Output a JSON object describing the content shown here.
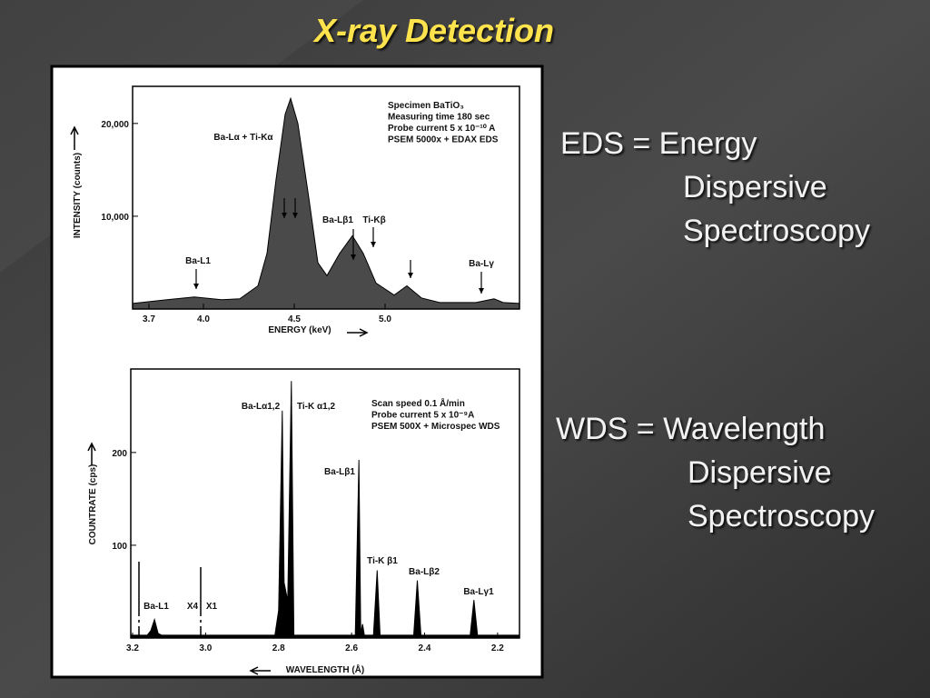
{
  "slide": {
    "title": "X-ray Detection",
    "blocks": [
      {
        "lines": [
          "EDS = Energy",
          "Dispersive",
          "Spectroscopy"
        ]
      },
      {
        "lines": [
          "WDS = Wavelength",
          "Dispersive",
          "Spectroscopy"
        ]
      }
    ]
  },
  "chart_data": [
    {
      "type": "area",
      "color": "#4a4a4a",
      "xlabel": "ENERGY (keV)",
      "ylabel": "INTENSITY (counts)",
      "info": [
        "Specimen BaTiO₃",
        "Measuring time 180 sec",
        "Probe current 5 x 10⁻¹⁰ A",
        "PSEM 5000x + EDAX EDS"
      ],
      "annotations": [
        "Ba-Lα + Ti-Kα",
        "Ba-Lβ1",
        "Ti-Kβ",
        "Ba-L1",
        "Ba-Lγ"
      ],
      "x": [
        3.61,
        3.8,
        3.95,
        4.1,
        4.2,
        4.3,
        4.35,
        4.4,
        4.45,
        4.48,
        4.52,
        4.58,
        4.63,
        4.68,
        4.75,
        4.82,
        4.88,
        4.95,
        5.05,
        5.12,
        5.2,
        5.3,
        5.5,
        5.6,
        5.65,
        5.74
      ],
      "values": [
        600,
        1000,
        1300,
        1000,
        1100,
        2500,
        6000,
        14000,
        21000,
        22700,
        20000,
        12000,
        5000,
        3600,
        6000,
        7900,
        6000,
        2800,
        1500,
        2500,
        1200,
        700,
        700,
        1100,
        700,
        600
      ],
      "xlim": [
        3.61,
        5.74
      ],
      "ylim": [
        0,
        24000
      ],
      "xticks": [
        3.7,
        {
          "value": 4.0,
          "label": "4.0"
        },
        4.5,
        {
          "value": 5.0,
          "label": "5.0"
        }
      ],
      "yticks": [
        {
          "value": 10000,
          "label": "10,000"
        },
        {
          "value": 20000,
          "label": "20,000"
        }
      ]
    },
    {
      "type": "area",
      "color": "#000000",
      "xlabel": "WAVELENGTH (Å)",
      "ylabel": "COUNTRATE (cps)",
      "info": [
        "Scan speed 0.1 Å/min",
        "Probe current 5 x 10⁻⁹A",
        "PSEM 500X + Microspec WDS"
      ],
      "annotations": [
        "Ba-Lα1,2",
        "Ti-K α1,2",
        "Ba-Lβ1",
        "Ti-K β1",
        "Ba-Lβ2",
        "Ba-Lγ1",
        "Ba-L1",
        "X4",
        "X1"
      ],
      "x": [
        3.205,
        3.16,
        3.15,
        3.14,
        3.13,
        3.12,
        2.81,
        2.8,
        2.79,
        2.785,
        2.775,
        2.765,
        2.758,
        2.59,
        2.58,
        2.575,
        2.57,
        2.565,
        2.54,
        2.53,
        2.522,
        2.43,
        2.42,
        2.41,
        2.275,
        2.265,
        2.255,
        2.14
      ],
      "values": [
        3,
        3,
        8,
        20,
        5,
        3,
        3,
        30,
        245,
        60,
        40,
        277,
        3,
        3,
        192,
        5,
        15,
        3,
        3,
        73,
        3,
        3,
        62,
        3,
        3,
        41,
        3,
        3
      ],
      "xlim": [
        3.205,
        2.14
      ],
      "ylim": [
        0,
        290
      ],
      "xticks": [
        3.2,
        {
          "value": 3.0,
          "label": "3.0"
        },
        2.8,
        2.6,
        2.4,
        2.2
      ],
      "yticks": [
        100,
        200
      ]
    }
  ]
}
